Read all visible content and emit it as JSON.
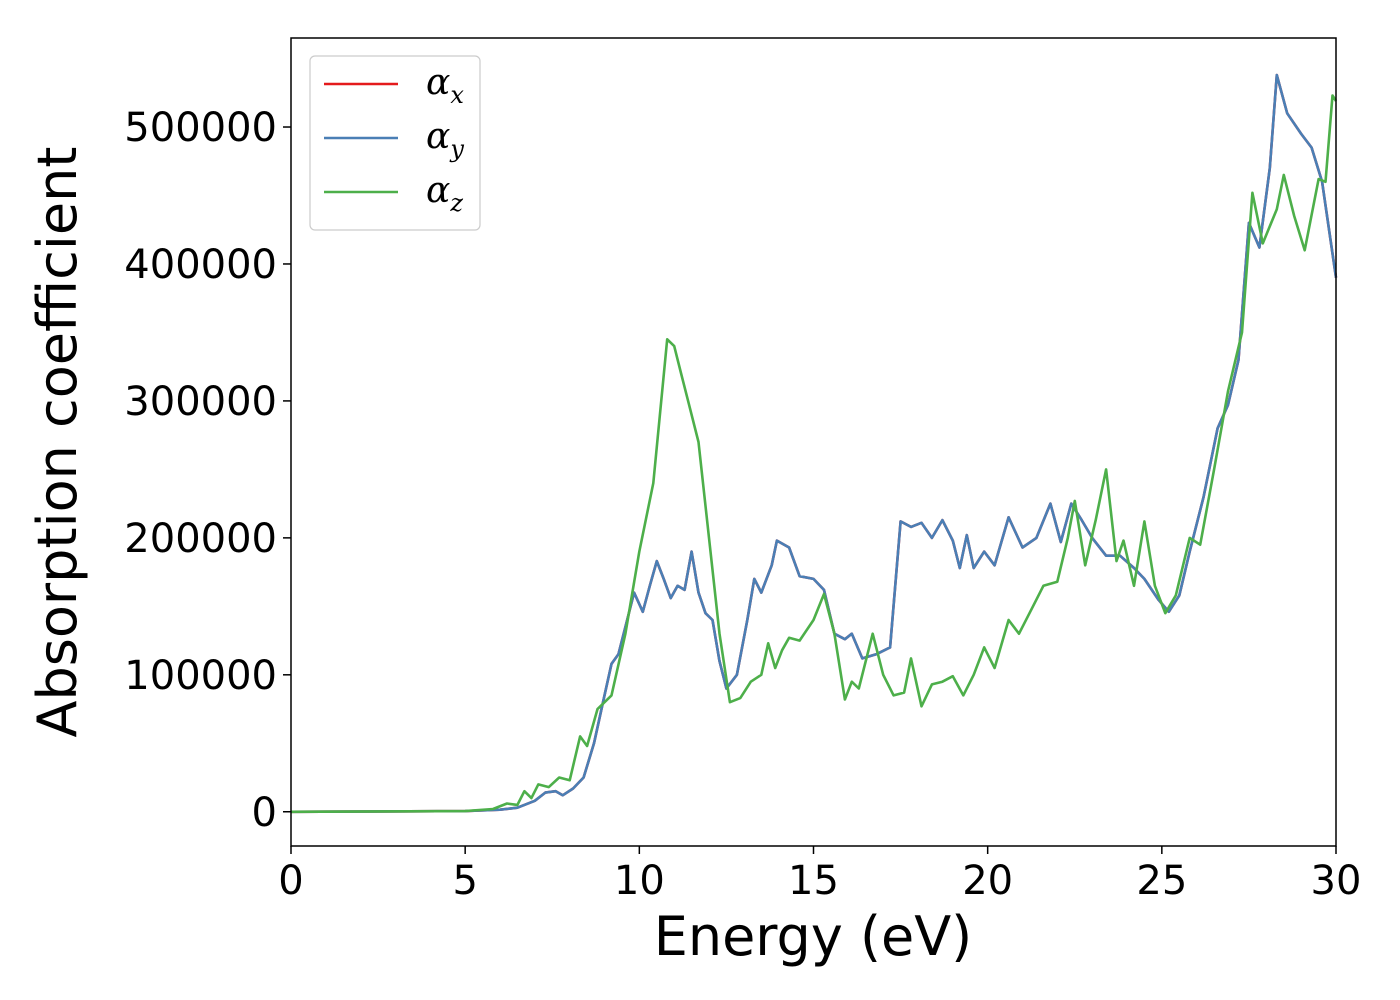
{
  "chart_data": {
    "type": "line",
    "xlabel": "Energy (eV)",
    "ylabel": "Absorption coefficient",
    "xlim": [
      0,
      30
    ],
    "ylim": [
      -25000,
      565000
    ],
    "xticks": [
      0,
      5,
      10,
      15,
      20,
      25,
      30
    ],
    "yticks": [
      0,
      100000,
      200000,
      300000,
      400000,
      500000
    ],
    "grid": false,
    "legend_position": "top-left",
    "series": [
      {
        "name": "α",
        "subscript": "x",
        "color": "#e41a1c",
        "points": [
          [
            0,
            0
          ],
          [
            5,
            500
          ],
          [
            6,
            1500
          ],
          [
            6.5,
            3000
          ],
          [
            7,
            8000
          ],
          [
            7.3,
            14000
          ],
          [
            7.6,
            15000
          ],
          [
            7.8,
            12000
          ],
          [
            8.1,
            17000
          ],
          [
            8.4,
            25000
          ],
          [
            8.7,
            50000
          ],
          [
            9,
            85000
          ],
          [
            9.2,
            108000
          ],
          [
            9.4,
            115000
          ],
          [
            9.6,
            135000
          ],
          [
            9.85,
            160000
          ],
          [
            10.1,
            146000
          ],
          [
            10.3,
            165000
          ],
          [
            10.5,
            183000
          ],
          [
            10.7,
            170000
          ],
          [
            10.9,
            156000
          ],
          [
            11.1,
            165000
          ],
          [
            11.3,
            162000
          ],
          [
            11.5,
            190000
          ],
          [
            11.7,
            160000
          ],
          [
            11.9,
            145000
          ],
          [
            12.1,
            140000
          ],
          [
            12.3,
            110000
          ],
          [
            12.5,
            90000
          ],
          [
            12.8,
            100000
          ],
          [
            13.1,
            140000
          ],
          [
            13.3,
            170000
          ],
          [
            13.5,
            160000
          ],
          [
            13.8,
            180000
          ],
          [
            13.95,
            198000
          ],
          [
            14.3,
            193000
          ],
          [
            14.6,
            172000
          ],
          [
            15,
            170000
          ],
          [
            15.3,
            162000
          ],
          [
            15.6,
            130000
          ],
          [
            15.9,
            126000
          ],
          [
            16.1,
            130000
          ],
          [
            16.4,
            112000
          ],
          [
            16.8,
            115000
          ],
          [
            17.2,
            120000
          ],
          [
            17.5,
            212000
          ],
          [
            17.8,
            208000
          ],
          [
            18.1,
            211000
          ],
          [
            18.4,
            200000
          ],
          [
            18.7,
            213000
          ],
          [
            19,
            198000
          ],
          [
            19.2,
            178000
          ],
          [
            19.4,
            202000
          ],
          [
            19.6,
            178000
          ],
          [
            19.9,
            190000
          ],
          [
            20.2,
            180000
          ],
          [
            20.6,
            215000
          ],
          [
            21,
            193000
          ],
          [
            21.4,
            200000
          ],
          [
            21.8,
            225000
          ],
          [
            22.1,
            197000
          ],
          [
            22.4,
            225000
          ],
          [
            22.7,
            213000
          ],
          [
            23,
            200000
          ],
          [
            23.4,
            187000
          ],
          [
            23.8,
            187000
          ],
          [
            24.2,
            178000
          ],
          [
            24.5,
            170000
          ],
          [
            24.9,
            155000
          ],
          [
            25.2,
            146000
          ],
          [
            25.5,
            158000
          ],
          [
            25.8,
            190000
          ],
          [
            26.2,
            230000
          ],
          [
            26.6,
            280000
          ],
          [
            26.9,
            297000
          ],
          [
            27.2,
            330000
          ],
          [
            27.5,
            430000
          ],
          [
            27.8,
            412000
          ],
          [
            28.1,
            470000
          ],
          [
            28.3,
            538000
          ],
          [
            28.6,
            510000
          ],
          [
            29,
            495000
          ],
          [
            29.3,
            485000
          ],
          [
            29.6,
            460000
          ],
          [
            30,
            390000
          ]
        ]
      },
      {
        "name": "α",
        "subscript": "y",
        "color": "#4a7fb5",
        "points": [
          [
            0,
            0
          ],
          [
            5,
            500
          ],
          [
            6,
            1500
          ],
          [
            6.5,
            3000
          ],
          [
            7,
            8000
          ],
          [
            7.3,
            14000
          ],
          [
            7.6,
            15000
          ],
          [
            7.8,
            12000
          ],
          [
            8.1,
            17000
          ],
          [
            8.4,
            25000
          ],
          [
            8.7,
            50000
          ],
          [
            9,
            85000
          ],
          [
            9.2,
            108000
          ],
          [
            9.4,
            115000
          ],
          [
            9.6,
            135000
          ],
          [
            9.85,
            160000
          ],
          [
            10.1,
            146000
          ],
          [
            10.3,
            165000
          ],
          [
            10.5,
            183000
          ],
          [
            10.7,
            170000
          ],
          [
            10.9,
            156000
          ],
          [
            11.1,
            165000
          ],
          [
            11.3,
            162000
          ],
          [
            11.5,
            190000
          ],
          [
            11.7,
            160000
          ],
          [
            11.9,
            145000
          ],
          [
            12.1,
            140000
          ],
          [
            12.3,
            110000
          ],
          [
            12.5,
            90000
          ],
          [
            12.8,
            100000
          ],
          [
            13.1,
            140000
          ],
          [
            13.3,
            170000
          ],
          [
            13.5,
            160000
          ],
          [
            13.8,
            180000
          ],
          [
            13.95,
            198000
          ],
          [
            14.3,
            193000
          ],
          [
            14.6,
            172000
          ],
          [
            15,
            170000
          ],
          [
            15.3,
            162000
          ],
          [
            15.6,
            130000
          ],
          [
            15.9,
            126000
          ],
          [
            16.1,
            130000
          ],
          [
            16.4,
            112000
          ],
          [
            16.8,
            115000
          ],
          [
            17.2,
            120000
          ],
          [
            17.5,
            212000
          ],
          [
            17.8,
            208000
          ],
          [
            18.1,
            211000
          ],
          [
            18.4,
            200000
          ],
          [
            18.7,
            213000
          ],
          [
            19,
            198000
          ],
          [
            19.2,
            178000
          ],
          [
            19.4,
            202000
          ],
          [
            19.6,
            178000
          ],
          [
            19.9,
            190000
          ],
          [
            20.2,
            180000
          ],
          [
            20.6,
            215000
          ],
          [
            21,
            193000
          ],
          [
            21.4,
            200000
          ],
          [
            21.8,
            225000
          ],
          [
            22.1,
            197000
          ],
          [
            22.4,
            225000
          ],
          [
            22.7,
            213000
          ],
          [
            23,
            200000
          ],
          [
            23.4,
            187000
          ],
          [
            23.8,
            187000
          ],
          [
            24.2,
            178000
          ],
          [
            24.5,
            170000
          ],
          [
            24.9,
            155000
          ],
          [
            25.2,
            146000
          ],
          [
            25.5,
            158000
          ],
          [
            25.8,
            190000
          ],
          [
            26.2,
            230000
          ],
          [
            26.6,
            280000
          ],
          [
            26.9,
            297000
          ],
          [
            27.2,
            330000
          ],
          [
            27.5,
            430000
          ],
          [
            27.8,
            412000
          ],
          [
            28.1,
            470000
          ],
          [
            28.3,
            538000
          ],
          [
            28.6,
            510000
          ],
          [
            29,
            495000
          ],
          [
            29.3,
            485000
          ],
          [
            29.6,
            460000
          ],
          [
            30,
            390000
          ]
        ]
      },
      {
        "name": "α",
        "subscript": "z",
        "color": "#4daf4a",
        "points": [
          [
            0,
            0
          ],
          [
            5,
            500
          ],
          [
            5.8,
            2000
          ],
          [
            6.2,
            6000
          ],
          [
            6.5,
            5000
          ],
          [
            6.7,
            15000
          ],
          [
            6.9,
            10000
          ],
          [
            7.1,
            20000
          ],
          [
            7.4,
            18000
          ],
          [
            7.7,
            25000
          ],
          [
            8,
            23000
          ],
          [
            8.3,
            55000
          ],
          [
            8.5,
            48000
          ],
          [
            8.8,
            75000
          ],
          [
            9.2,
            85000
          ],
          [
            9.6,
            130000
          ],
          [
            10,
            190000
          ],
          [
            10.4,
            240000
          ],
          [
            10.8,
            345000
          ],
          [
            11,
            340000
          ],
          [
            11.2,
            320000
          ],
          [
            11.4,
            300000
          ],
          [
            11.7,
            270000
          ],
          [
            12,
            200000
          ],
          [
            12.3,
            130000
          ],
          [
            12.6,
            80000
          ],
          [
            12.9,
            83000
          ],
          [
            13.2,
            95000
          ],
          [
            13.5,
            100000
          ],
          [
            13.7,
            123000
          ],
          [
            13.9,
            105000
          ],
          [
            14.1,
            118000
          ],
          [
            14.3,
            127000
          ],
          [
            14.6,
            125000
          ],
          [
            15,
            140000
          ],
          [
            15.3,
            159000
          ],
          [
            15.6,
            130000
          ],
          [
            15.9,
            82000
          ],
          [
            16.1,
            95000
          ],
          [
            16.3,
            90000
          ],
          [
            16.7,
            130000
          ],
          [
            17,
            100000
          ],
          [
            17.3,
            85000
          ],
          [
            17.6,
            87000
          ],
          [
            17.8,
            112000
          ],
          [
            18.1,
            77000
          ],
          [
            18.4,
            93000
          ],
          [
            18.7,
            95000
          ],
          [
            19,
            99000
          ],
          [
            19.3,
            85000
          ],
          [
            19.6,
            100000
          ],
          [
            19.9,
            120000
          ],
          [
            20.2,
            105000
          ],
          [
            20.6,
            140000
          ],
          [
            20.9,
            130000
          ],
          [
            21.3,
            150000
          ],
          [
            21.6,
            165000
          ],
          [
            22,
            168000
          ],
          [
            22.3,
            200000
          ],
          [
            22.5,
            227000
          ],
          [
            22.8,
            180000
          ],
          [
            23.1,
            213000
          ],
          [
            23.4,
            250000
          ],
          [
            23.7,
            183000
          ],
          [
            23.9,
            198000
          ],
          [
            24.2,
            165000
          ],
          [
            24.5,
            212000
          ],
          [
            24.8,
            165000
          ],
          [
            25.1,
            145000
          ],
          [
            25.4,
            158000
          ],
          [
            25.8,
            200000
          ],
          [
            26.1,
            195000
          ],
          [
            26.5,
            250000
          ],
          [
            26.9,
            307000
          ],
          [
            27.3,
            350000
          ],
          [
            27.6,
            452000
          ],
          [
            27.9,
            415000
          ],
          [
            28.3,
            440000
          ],
          [
            28.5,
            465000
          ],
          [
            28.8,
            435000
          ],
          [
            29.1,
            410000
          ],
          [
            29.5,
            462000
          ],
          [
            29.7,
            460000
          ],
          [
            29.9,
            523000
          ],
          [
            30,
            519000
          ]
        ]
      }
    ]
  }
}
